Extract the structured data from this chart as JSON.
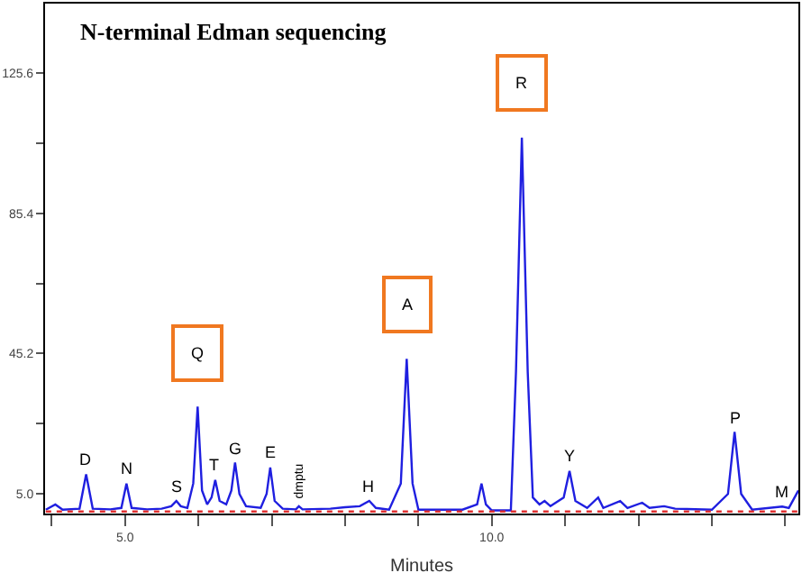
{
  "chart_data": {
    "type": "line",
    "title": "N-terminal Edman sequencing",
    "xlabel": "Minutes",
    "xlim": [
      3.91,
      14.18
    ],
    "ylim": [
      -0.6,
      145.4
    ],
    "xticks": [
      {
        "value": 4,
        "label": null
      },
      {
        "value": 5,
        "label": "5.0"
      },
      {
        "value": 6,
        "label": null
      },
      {
        "value": 7,
        "label": null
      },
      {
        "value": 8,
        "label": null
      },
      {
        "value": 9,
        "label": null
      },
      {
        "value": 10,
        "label": "10.0"
      },
      {
        "value": 11,
        "label": null
      },
      {
        "value": 12,
        "label": null
      },
      {
        "value": 13,
        "label": null
      },
      {
        "value": 14,
        "label": null
      }
    ],
    "yticks": [
      {
        "value": 5,
        "label": "5.0"
      },
      {
        "value": 25.1,
        "label": null
      },
      {
        "value": 45.2,
        "label": "45.2"
      },
      {
        "value": 65.3,
        "label": null
      },
      {
        "value": 85.4,
        "label": "85.4"
      },
      {
        "value": 105.5,
        "label": null
      },
      {
        "value": 125.6,
        "label": "125.6"
      }
    ],
    "marker": "none",
    "series": [
      {
        "color": "#1f1fe0",
        "line_style": "solid",
        "x": [
          3.92,
          4.05,
          4.15,
          4.38,
          4.47,
          4.56,
          4.8,
          4.95,
          5.02,
          5.09,
          5.3,
          5.5,
          5.63,
          5.7,
          5.76,
          5.85,
          5.93,
          5.99,
          6.05,
          6.12,
          6.18,
          6.23,
          6.29,
          6.38,
          6.45,
          6.5,
          6.56,
          6.65,
          6.85,
          6.93,
          6.98,
          7.04,
          7.15,
          7.33,
          7.37,
          7.42,
          7.8,
          8.0,
          8.2,
          8.33,
          8.42,
          8.6,
          8.76,
          8.84,
          8.92,
          9.0,
          9.6,
          9.8,
          9.86,
          9.92,
          10.0,
          10.26,
          10.33,
          10.41,
          10.49,
          10.56,
          10.65,
          10.72,
          10.8,
          10.98,
          11.06,
          11.14,
          11.3,
          11.45,
          11.52,
          11.75,
          11.85,
          12.05,
          12.15,
          12.35,
          12.5,
          13.0,
          13.22,
          13.31,
          13.4,
          13.55,
          13.96,
          14.05,
          14.18
        ],
        "values": [
          0.5,
          2,
          0.5,
          0.8,
          10.6,
          0.8,
          0.6,
          1,
          8,
          1,
          0.6,
          0.8,
          1.5,
          3,
          1.5,
          1,
          8,
          30,
          6,
          2,
          4,
          9,
          3,
          2,
          6,
          14,
          5,
          1.5,
          1,
          5,
          12.6,
          3,
          0.8,
          0.6,
          1.5,
          0.6,
          0.8,
          1.2,
          1.5,
          3,
          1,
          0.5,
          8,
          43.7,
          8,
          0.5,
          0.5,
          2,
          8,
          2,
          0.3,
          0.3,
          40,
          107,
          40,
          4,
          2,
          3,
          1.5,
          4,
          11.6,
          3,
          1,
          4,
          1,
          3,
          1,
          2.5,
          1,
          1.5,
          0.8,
          0.5,
          5,
          22.8,
          5,
          0.5,
          1.4,
          1,
          6
        ]
      },
      {
        "color": "#e03030",
        "line_style": "dotted",
        "x": [
          3.92,
          14.18
        ],
        "values": [
          0,
          0
        ]
      }
    ],
    "annotations": [
      {
        "text": "D",
        "x": 4.47,
        "y": 10.6
      },
      {
        "text": "N",
        "x": 5.02,
        "y": 8
      },
      {
        "text": "S",
        "x": 5.7,
        "y": 3
      },
      {
        "text": "Q",
        "x": 5.99,
        "y": 30
      },
      {
        "text": "T",
        "x": 6.23,
        "y": 9
      },
      {
        "text": "G",
        "x": 6.5,
        "y": 14
      },
      {
        "text": "E",
        "x": 6.98,
        "y": 12.6
      },
      {
        "text": "dmptu",
        "x": 7.37,
        "y": 1.5
      },
      {
        "text": "H",
        "x": 8.33,
        "y": 3
      },
      {
        "text": "A",
        "x": 8.84,
        "y": 43.7
      },
      {
        "text": "R",
        "x": 10.41,
        "y": 107
      },
      {
        "text": "Y",
        "x": 11.06,
        "y": 11.6
      },
      {
        "text": "P",
        "x": 13.31,
        "y": 22.8
      },
      {
        "text": "M",
        "x": 13.96,
        "y": 1.4
      }
    ]
  }
}
